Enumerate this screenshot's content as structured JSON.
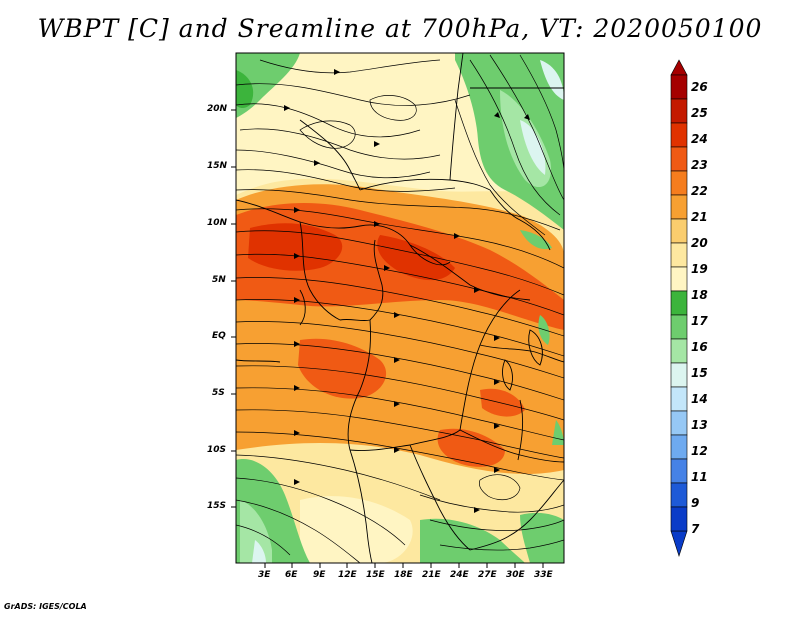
{
  "title": "WBPT [C] and Sreamline at 700hPa, VT: 2020050100",
  "credit": "GrADS: IGES/COLA",
  "map": {
    "variable": "Wet-bulb potential temperature",
    "units": "C",
    "level": "700hPa",
    "valid_time": "2020050100",
    "lat_labels": [
      "20N",
      "15N",
      "10N",
      "5N",
      "EQ",
      "5S",
      "10S",
      "15S"
    ],
    "lon_labels": [
      "3E",
      "6E",
      "9E",
      "12E",
      "15E",
      "18E",
      "21E",
      "24E",
      "27E",
      "30E",
      "33E"
    ]
  },
  "colorbar": {
    "labels": [
      "26",
      "25",
      "24",
      "23",
      "22",
      "21",
      "20",
      "19",
      "18",
      "17",
      "16",
      "15",
      "14",
      "13",
      "12",
      "11",
      "9",
      "7"
    ],
    "colors": [
      "#a50000",
      "#c41a00",
      "#e03200",
      "#f05a14",
      "#f57d1e",
      "#f7a032",
      "#facd6e",
      "#fde8a0",
      "#fff5c3",
      "#3cb43c",
      "#6ecd6e",
      "#a5e6a5",
      "#dcf5f0",
      "#c3e6fa",
      "#96c8f5",
      "#6eaaf0",
      "#4682e6",
      "#1e5ad7",
      "#0a3cc8"
    ]
  }
}
